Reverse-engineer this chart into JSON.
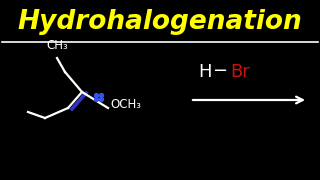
{
  "bg_color": "#000000",
  "title": "Hydrohalogenation",
  "title_color": "#ffff00",
  "title_fontsize": 19,
  "separator_color": "#ffffff",
  "molecule": {
    "ch3_label": "CH₃",
    "och3_label": "OCH₃",
    "bond_color_blue": "#3333cc",
    "bond_color_white": "#ffffff",
    "dot_color": "#3355ee"
  },
  "H_color": "#ffffff",
  "Br_color": "#cc1111",
  "arrow_color": "#ffffff"
}
